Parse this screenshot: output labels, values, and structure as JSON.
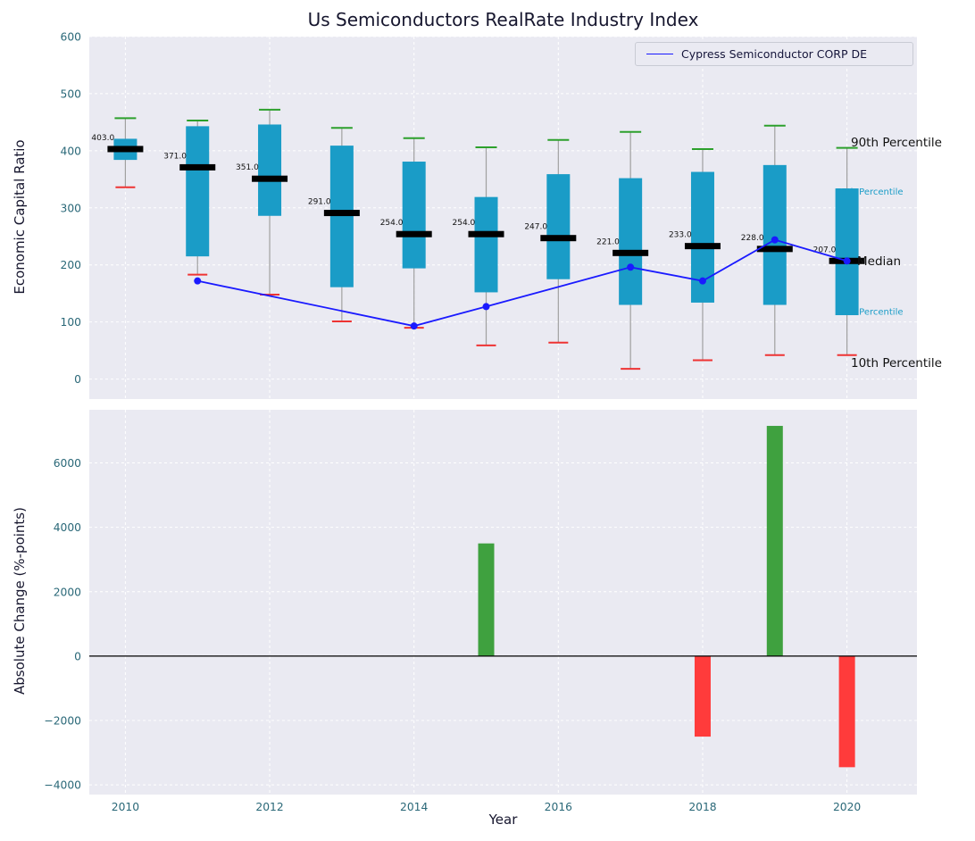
{
  "title": "Us Semiconductors RealRate Industry Index",
  "colors": {
    "box": "#1a9cc7",
    "whisker": "#a0a0a0",
    "cap_top": "#2ca02c",
    "cap_bottom": "#ee3333",
    "median": "#000000",
    "series_line": "#1a1aff",
    "bar_positive": "#3fa13f",
    "bar_negative": "#ff3b3b",
    "plot_bg": "#eaeaf2",
    "grid": "#ffffff",
    "tick_label": "#2a6878",
    "title_color": "#16162e",
    "annotation_major": "#111111",
    "annotation_minor": "#1a9cc7"
  },
  "chart_data": [
    {
      "type": "boxplot_with_line",
      "title": "Us Semiconductors RealRate Industry Index",
      "ylabel": "Economic Capital Ratio",
      "ylim": [
        0,
        600
      ],
      "yticks": [
        0,
        100,
        200,
        300,
        400,
        500,
        600
      ],
      "grid": true,
      "legend": {
        "position": "upper right",
        "label": "Cypress Semiconductor CORP DE"
      },
      "boxes": [
        {
          "year": 2010,
          "p10": 336,
          "p25": 384,
          "median": 403,
          "p75": 421,
          "p90": 457,
          "label": "403.0"
        },
        {
          "year": 2011,
          "p10": 183,
          "p25": 215,
          "median": 371,
          "p75": 443,
          "p90": 453,
          "label": "371.0"
        },
        {
          "year": 2012,
          "p10": 148,
          "p25": 286,
          "median": 351,
          "p75": 446,
          "p90": 472,
          "label": "351.0"
        },
        {
          "year": 2013,
          "p10": 101,
          "p25": 161,
          "median": 291,
          "p75": 409,
          "p90": 440,
          "label": "291.0"
        },
        {
          "year": 2014,
          "p10": 90,
          "p25": 194,
          "median": 254,
          "p75": 381,
          "p90": 422,
          "label": "254.0"
        },
        {
          "year": 2015,
          "p10": 59,
          "p25": 152,
          "median": 254,
          "p75": 319,
          "p90": 406,
          "label": "254.0"
        },
        {
          "year": 2016,
          "p10": 64,
          "p25": 175,
          "median": 247,
          "p75": 359,
          "p90": 419,
          "label": "247.0"
        },
        {
          "year": 2017,
          "p10": 18,
          "p25": 130,
          "median": 221,
          "p75": 352,
          "p90": 433,
          "label": "221.0"
        },
        {
          "year": 2018,
          "p10": 33,
          "p25": 134,
          "median": 233,
          "p75": 363,
          "p90": 403,
          "label": "233.0"
        },
        {
          "year": 2019,
          "p10": 42,
          "p25": 130,
          "median": 228,
          "p75": 375,
          "p90": 444,
          "label": "228.0"
        },
        {
          "year": 2020,
          "p10": 42,
          "p25": 112,
          "median": 207,
          "p75": 334,
          "p90": 405,
          "label": "207.0"
        }
      ],
      "series": [
        {
          "name": "Cypress Semiconductor CORP DE",
          "x": [
            2011,
            2014,
            2015,
            2017,
            2018,
            2019,
            2020
          ],
          "values": [
            172,
            93,
            127,
            196,
            172,
            244,
            207
          ]
        }
      ],
      "annotations": [
        {
          "label": "90th Percentile",
          "value": 415,
          "style": "major"
        },
        {
          "label": "75th Percentile",
          "value": 330,
          "style": "minor"
        },
        {
          "label": "Median",
          "value": 207,
          "style": "major"
        },
        {
          "label": "25th Percentile",
          "value": 120,
          "style": "minor"
        },
        {
          "label": "10th Percentile",
          "value": 28,
          "style": "major"
        }
      ]
    },
    {
      "type": "bar",
      "ylabel": "Absolute Change (%-points)",
      "xlabel": "Year",
      "ylim": [
        -4300,
        7650
      ],
      "yticks": [
        -4000,
        -2000,
        0,
        2000,
        4000,
        6000
      ],
      "xticks": [
        2010,
        2012,
        2014,
        2016,
        2018,
        2020
      ],
      "bars": [
        {
          "year": 2015,
          "value": 3500
        },
        {
          "year": 2018,
          "value": -2500
        },
        {
          "year": 2019,
          "value": 7150
        },
        {
          "year": 2020,
          "value": -3450
        }
      ]
    }
  ]
}
